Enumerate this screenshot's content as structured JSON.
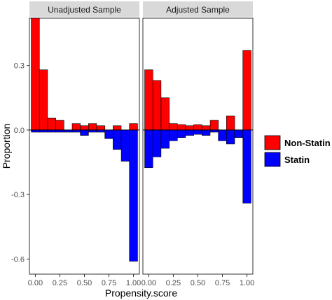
{
  "chart_data": {
    "type": "bar",
    "ylabel": "Proportion",
    "xlabel": "Propensity.score",
    "ylim": [
      -0.67,
      0.52
    ],
    "xlim": [
      -0.06,
      1.06
    ],
    "yticks": [
      0.3,
      0.0,
      -0.3,
      -0.6
    ],
    "ytick_labels": [
      "0.3",
      "0.0",
      "-0.3",
      "-0.6"
    ],
    "xticks": [
      0.0,
      0.25,
      0.5,
      0.75,
      1.0
    ],
    "xtick_labels": [
      "0.00",
      "0.25",
      "0.50",
      "0.75",
      "1.00"
    ],
    "bin_centers": [
      0.0,
      0.083,
      0.167,
      0.25,
      0.333,
      0.417,
      0.5,
      0.583,
      0.667,
      0.75,
      0.833,
      0.917,
      1.0
    ],
    "legend": {
      "position": "right",
      "entries": [
        {
          "label": "Non-Statin",
          "color": "#ff0000"
        },
        {
          "label": "Statin",
          "color": "#0000ff"
        }
      ]
    },
    "panels": [
      {
        "title": "Unadjusted Sample",
        "series": [
          {
            "name": "Non-Statin",
            "values": [
              0.52,
              0.28,
              0.055,
              0.045,
              0.0,
              0.03,
              0.02,
              0.03,
              0.02,
              0.0,
              0.02,
              0.0,
              0.03
            ]
          },
          {
            "name": "Statin",
            "values": [
              -0.01,
              -0.01,
              -0.01,
              -0.01,
              -0.01,
              -0.01,
              -0.025,
              -0.01,
              -0.01,
              -0.04,
              -0.09,
              -0.145,
              -0.61
            ]
          }
        ]
      },
      {
        "title": "Adjusted Sample",
        "series": [
          {
            "name": "Non-Statin",
            "values": [
              0.28,
              0.23,
              0.15,
              0.03,
              0.025,
              0.02,
              0.025,
              0.02,
              0.045,
              0.0,
              0.065,
              0.0,
              0.37
            ]
          },
          {
            "name": "Statin",
            "values": [
              -0.175,
              -0.125,
              -0.085,
              -0.05,
              -0.035,
              -0.025,
              -0.02,
              -0.025,
              -0.01,
              -0.05,
              -0.065,
              -0.035,
              -0.34
            ]
          }
        ]
      }
    ]
  }
}
